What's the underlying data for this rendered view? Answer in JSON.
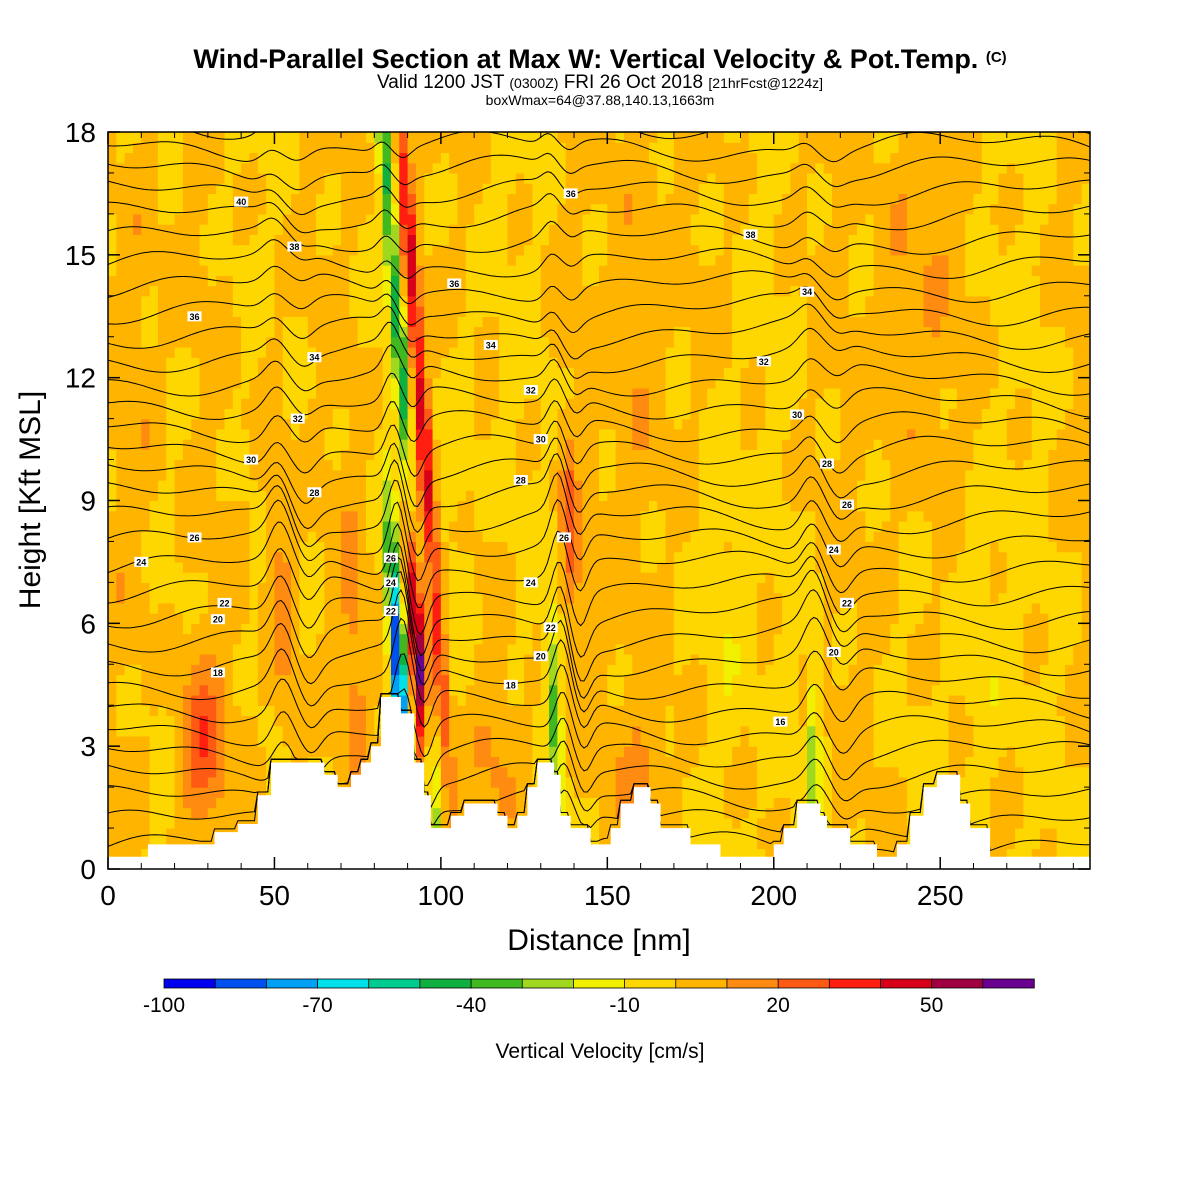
{
  "header": {
    "title_main": "Wind-Parallel Section at Max W: Vertical Velocity & Pot.Temp.",
    "title_mark": "(C)",
    "subtitle_a": "Valid 1200 JST",
    "subtitle_b": "(0300Z)",
    "subtitle_c": "FRI 26 Oct 2018",
    "subtitle_d": "[21hrFcst@1224z]",
    "info": "boxWmax=64@37.88,140.13,1663m"
  },
  "chart_data": {
    "type": "heatmap",
    "title": "Wind-Parallel Section at Max W: Vertical Velocity & Pot.Temp.",
    "xlabel": "Distance [nm]",
    "ylabel": "Height [Kft MSL]",
    "xlim": [
      0,
      295
    ],
    "ylim": [
      0,
      18
    ],
    "x_ticks": [
      0,
      50,
      100,
      150,
      200,
      250
    ],
    "y_ticks": [
      0,
      3,
      6,
      9,
      12,
      15,
      18
    ],
    "x_tick_labels": [
      "0",
      "50",
      "100",
      "150",
      "200",
      "250"
    ],
    "y_tick_labels": [
      "0",
      "3",
      "6",
      "9",
      "12",
      "15",
      "18"
    ],
    "colorbar": {
      "label": "Vertical Velocity [cm/s]",
      "min": -100,
      "max": 70,
      "step": 10,
      "tick_values": [
        -100,
        -70,
        -40,
        -10,
        20,
        50
      ],
      "tick_labels": [
        "-100",
        "-70",
        "-40",
        "-10",
        "20",
        "50"
      ],
      "colors": [
        "#0000ee",
        "#0050f0",
        "#00a0f5",
        "#00e0e8",
        "#00cc90",
        "#10b040",
        "#40b820",
        "#a0d820",
        "#f0f000",
        "#ffd700",
        "#ffb400",
        "#ff8c10",
        "#ff5a14",
        "#ff1e10",
        "#d80018",
        "#a00040",
        "#6a0090"
      ]
    },
    "contour_labels": [
      {
        "x": 40,
        "y": 16.3,
        "text": "40"
      },
      {
        "x": 56,
        "y": 15.2,
        "text": "38"
      },
      {
        "x": 26,
        "y": 13.5,
        "text": "36"
      },
      {
        "x": 62,
        "y": 12.5,
        "text": "34"
      },
      {
        "x": 57,
        "y": 11.0,
        "text": "32"
      },
      {
        "x": 43,
        "y": 10.0,
        "text": "30"
      },
      {
        "x": 62,
        "y": 9.2,
        "text": "28"
      },
      {
        "x": 26,
        "y": 8.1,
        "text": "26"
      },
      {
        "x": 10,
        "y": 7.5,
        "text": "24"
      },
      {
        "x": 35,
        "y": 6.5,
        "text": "22"
      },
      {
        "x": 33,
        "y": 6.1,
        "text": "20"
      },
      {
        "x": 33,
        "y": 4.8,
        "text": "18"
      },
      {
        "x": 85,
        "y": 7.6,
        "text": "26"
      },
      {
        "x": 85,
        "y": 7.0,
        "text": "24"
      },
      {
        "x": 85,
        "y": 6.3,
        "text": "22"
      },
      {
        "x": 139,
        "y": 16.5,
        "text": "36"
      },
      {
        "x": 104,
        "y": 14.3,
        "text": "36"
      },
      {
        "x": 115,
        "y": 12.8,
        "text": "34"
      },
      {
        "x": 127,
        "y": 11.7,
        "text": "32"
      },
      {
        "x": 130,
        "y": 10.5,
        "text": "30"
      },
      {
        "x": 124,
        "y": 9.5,
        "text": "28"
      },
      {
        "x": 137,
        "y": 8.1,
        "text": "26"
      },
      {
        "x": 127,
        "y": 7.0,
        "text": "24"
      },
      {
        "x": 133,
        "y": 5.9,
        "text": "22"
      },
      {
        "x": 130,
        "y": 5.2,
        "text": "20"
      },
      {
        "x": 121,
        "y": 4.5,
        "text": "18"
      },
      {
        "x": 193,
        "y": 15.5,
        "text": "38"
      },
      {
        "x": 210,
        "y": 14.1,
        "text": "34"
      },
      {
        "x": 197,
        "y": 12.4,
        "text": "32"
      },
      {
        "x": 207,
        "y": 11.1,
        "text": "30"
      },
      {
        "x": 216,
        "y": 9.9,
        "text": "28"
      },
      {
        "x": 222,
        "y": 8.9,
        "text": "26"
      },
      {
        "x": 218,
        "y": 7.8,
        "text": "24"
      },
      {
        "x": 222,
        "y": 6.5,
        "text": "22"
      },
      {
        "x": 218,
        "y": 5.3,
        "text": "20"
      },
      {
        "x": 202,
        "y": 3.6,
        "text": "16"
      }
    ]
  }
}
